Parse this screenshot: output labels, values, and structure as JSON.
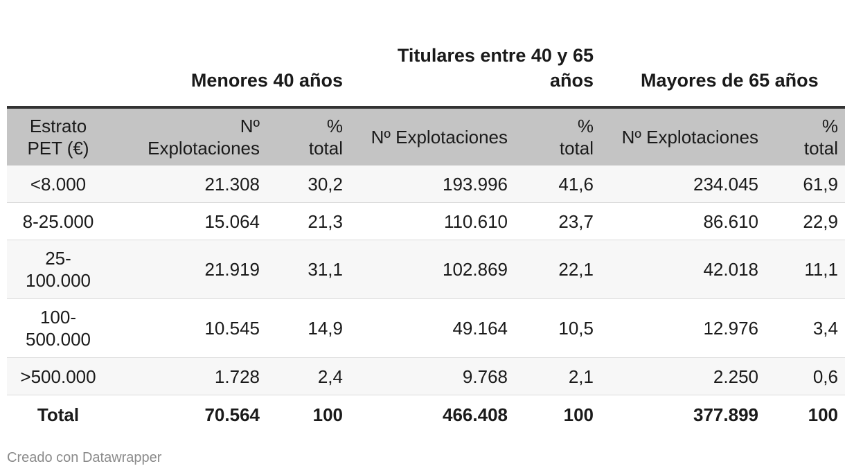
{
  "chart_data": {
    "type": "table",
    "group_headers": [
      "",
      "Menores 40 años",
      "Titulares entre 40 y 65 años",
      "Mayores de 65 años"
    ],
    "columns": [
      "Estrato PET (€)",
      "Nº Explotaciones",
      "% total",
      "Nº Explotaciones",
      "% total",
      "Nº Explotaciones",
      "% total"
    ],
    "rows": [
      [
        "<8.000",
        "21.308",
        "30,2",
        "193.996",
        "41,6",
        "234.045",
        "61,9"
      ],
      [
        "8-25.000",
        "15.064",
        "21,3",
        "110.610",
        "23,7",
        "86.610",
        "22,9"
      ],
      [
        "25-100.000",
        "21.919",
        "31,1",
        "102.869",
        "22,1",
        "42.018",
        "11,1"
      ],
      [
        "100-500.000",
        "10.545",
        "14,9",
        "49.164",
        "10,5",
        "12.976",
        "3,4"
      ],
      [
        ">500.000",
        "1.728",
        "2,4",
        "9.768",
        "2,1",
        "2.250",
        "0,6"
      ],
      [
        "Total",
        "70.564",
        "100",
        "466.408",
        "100",
        "377.899",
        "100"
      ]
    ]
  },
  "footer": "Creado con Datawrapper"
}
